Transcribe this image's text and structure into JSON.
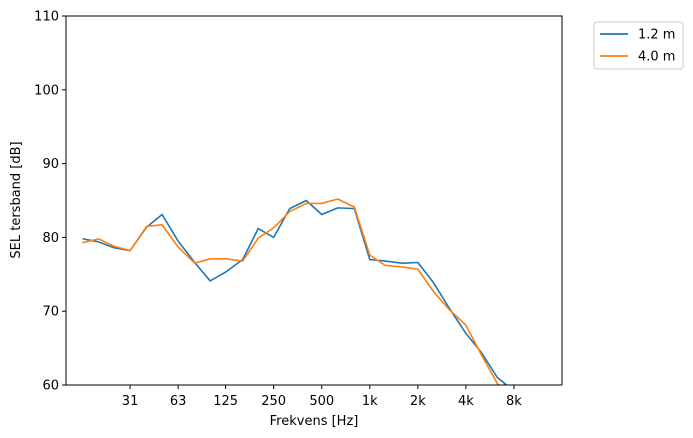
{
  "chart_data": {
    "type": "line",
    "title": "",
    "xlabel": "Frekvens [Hz]",
    "ylabel": "SEL tersband [dB]",
    "xscale": "log",
    "xlim": [
      12.5,
      16000
    ],
    "ylim": [
      60,
      110
    ],
    "grid": false,
    "legend_position": "outside top-right",
    "x_ticks": [
      {
        "value": 31.5,
        "label": "31"
      },
      {
        "value": 63,
        "label": "63"
      },
      {
        "value": 125,
        "label": "125"
      },
      {
        "value": 250,
        "label": "250"
      },
      {
        "value": 500,
        "label": "500"
      },
      {
        "value": 1000,
        "label": "1k"
      },
      {
        "value": 2000,
        "label": "2k"
      },
      {
        "value": 4000,
        "label": "4k"
      },
      {
        "value": 8000,
        "label": "8k"
      }
    ],
    "y_ticks": [
      60,
      70,
      80,
      90,
      100,
      110
    ],
    "x": [
      16,
      20,
      25,
      31.5,
      40,
      50,
      63,
      80,
      100,
      125,
      160,
      200,
      250,
      315,
      400,
      500,
      630,
      800,
      1000,
      1250,
      1600,
      2000,
      2500,
      3150,
      4000,
      5000,
      6300,
      8000,
      10000
    ],
    "series": [
      {
        "name": "1.2 m",
        "color": "#1f77b4",
        "values": [
          79.8,
          79.4,
          78.6,
          78.2,
          81.4,
          83.1,
          79.5,
          76.6,
          74.1,
          75.3,
          77.0,
          81.2,
          80.0,
          83.9,
          85.0,
          83.1,
          84.0,
          83.9,
          77.0,
          76.8,
          76.5,
          76.6,
          73.9,
          70.4,
          67.0,
          64.4,
          61.0,
          59.2,
          57.5
        ]
      },
      {
        "name": "4.0 m",
        "color": "#ff7f0e",
        "values": [
          79.3,
          79.8,
          78.8,
          78.2,
          81.5,
          81.7,
          78.7,
          76.5,
          77.1,
          77.1,
          76.8,
          79.9,
          81.3,
          83.5,
          84.6,
          84.6,
          85.2,
          84.1,
          77.6,
          76.2,
          76.0,
          75.7,
          72.7,
          70.2,
          68.1,
          64.1,
          60.2,
          57.8,
          56.5
        ]
      }
    ]
  }
}
